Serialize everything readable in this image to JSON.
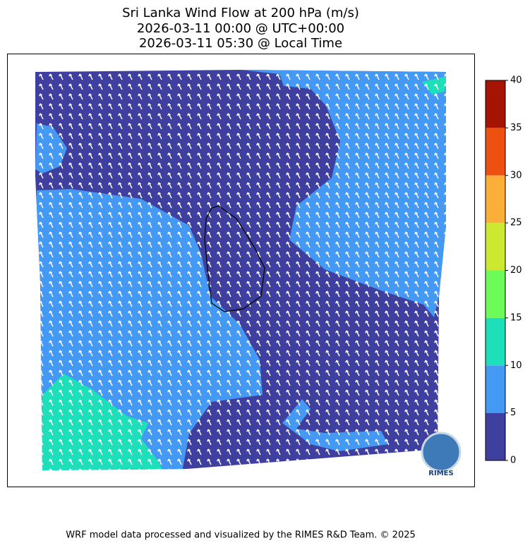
{
  "title": [
    "Sri Lanka Wind Flow at 200 hPa (m/s)",
    "2026-03-11 00:00 @ UTC+00:00",
    "2026-03-11 05:30 @ Local Time"
  ],
  "colorbar": {
    "levels": [
      0,
      5,
      10,
      15,
      20,
      25,
      30,
      35,
      40
    ],
    "colors": [
      "#3f3f9f",
      "#4499f5",
      "#1de0bb",
      "#6dfb5a",
      "#cde830",
      "#fbae38",
      "#ee5010",
      "#a51403"
    ],
    "ylim": [
      0,
      40
    ],
    "yticks": [
      0,
      5,
      10,
      15,
      20,
      25,
      30,
      35,
      40
    ]
  },
  "logo": "RIMES",
  "footer": "WRF model data processed and visualized by the RIMES R&D Team. © 2025"
}
